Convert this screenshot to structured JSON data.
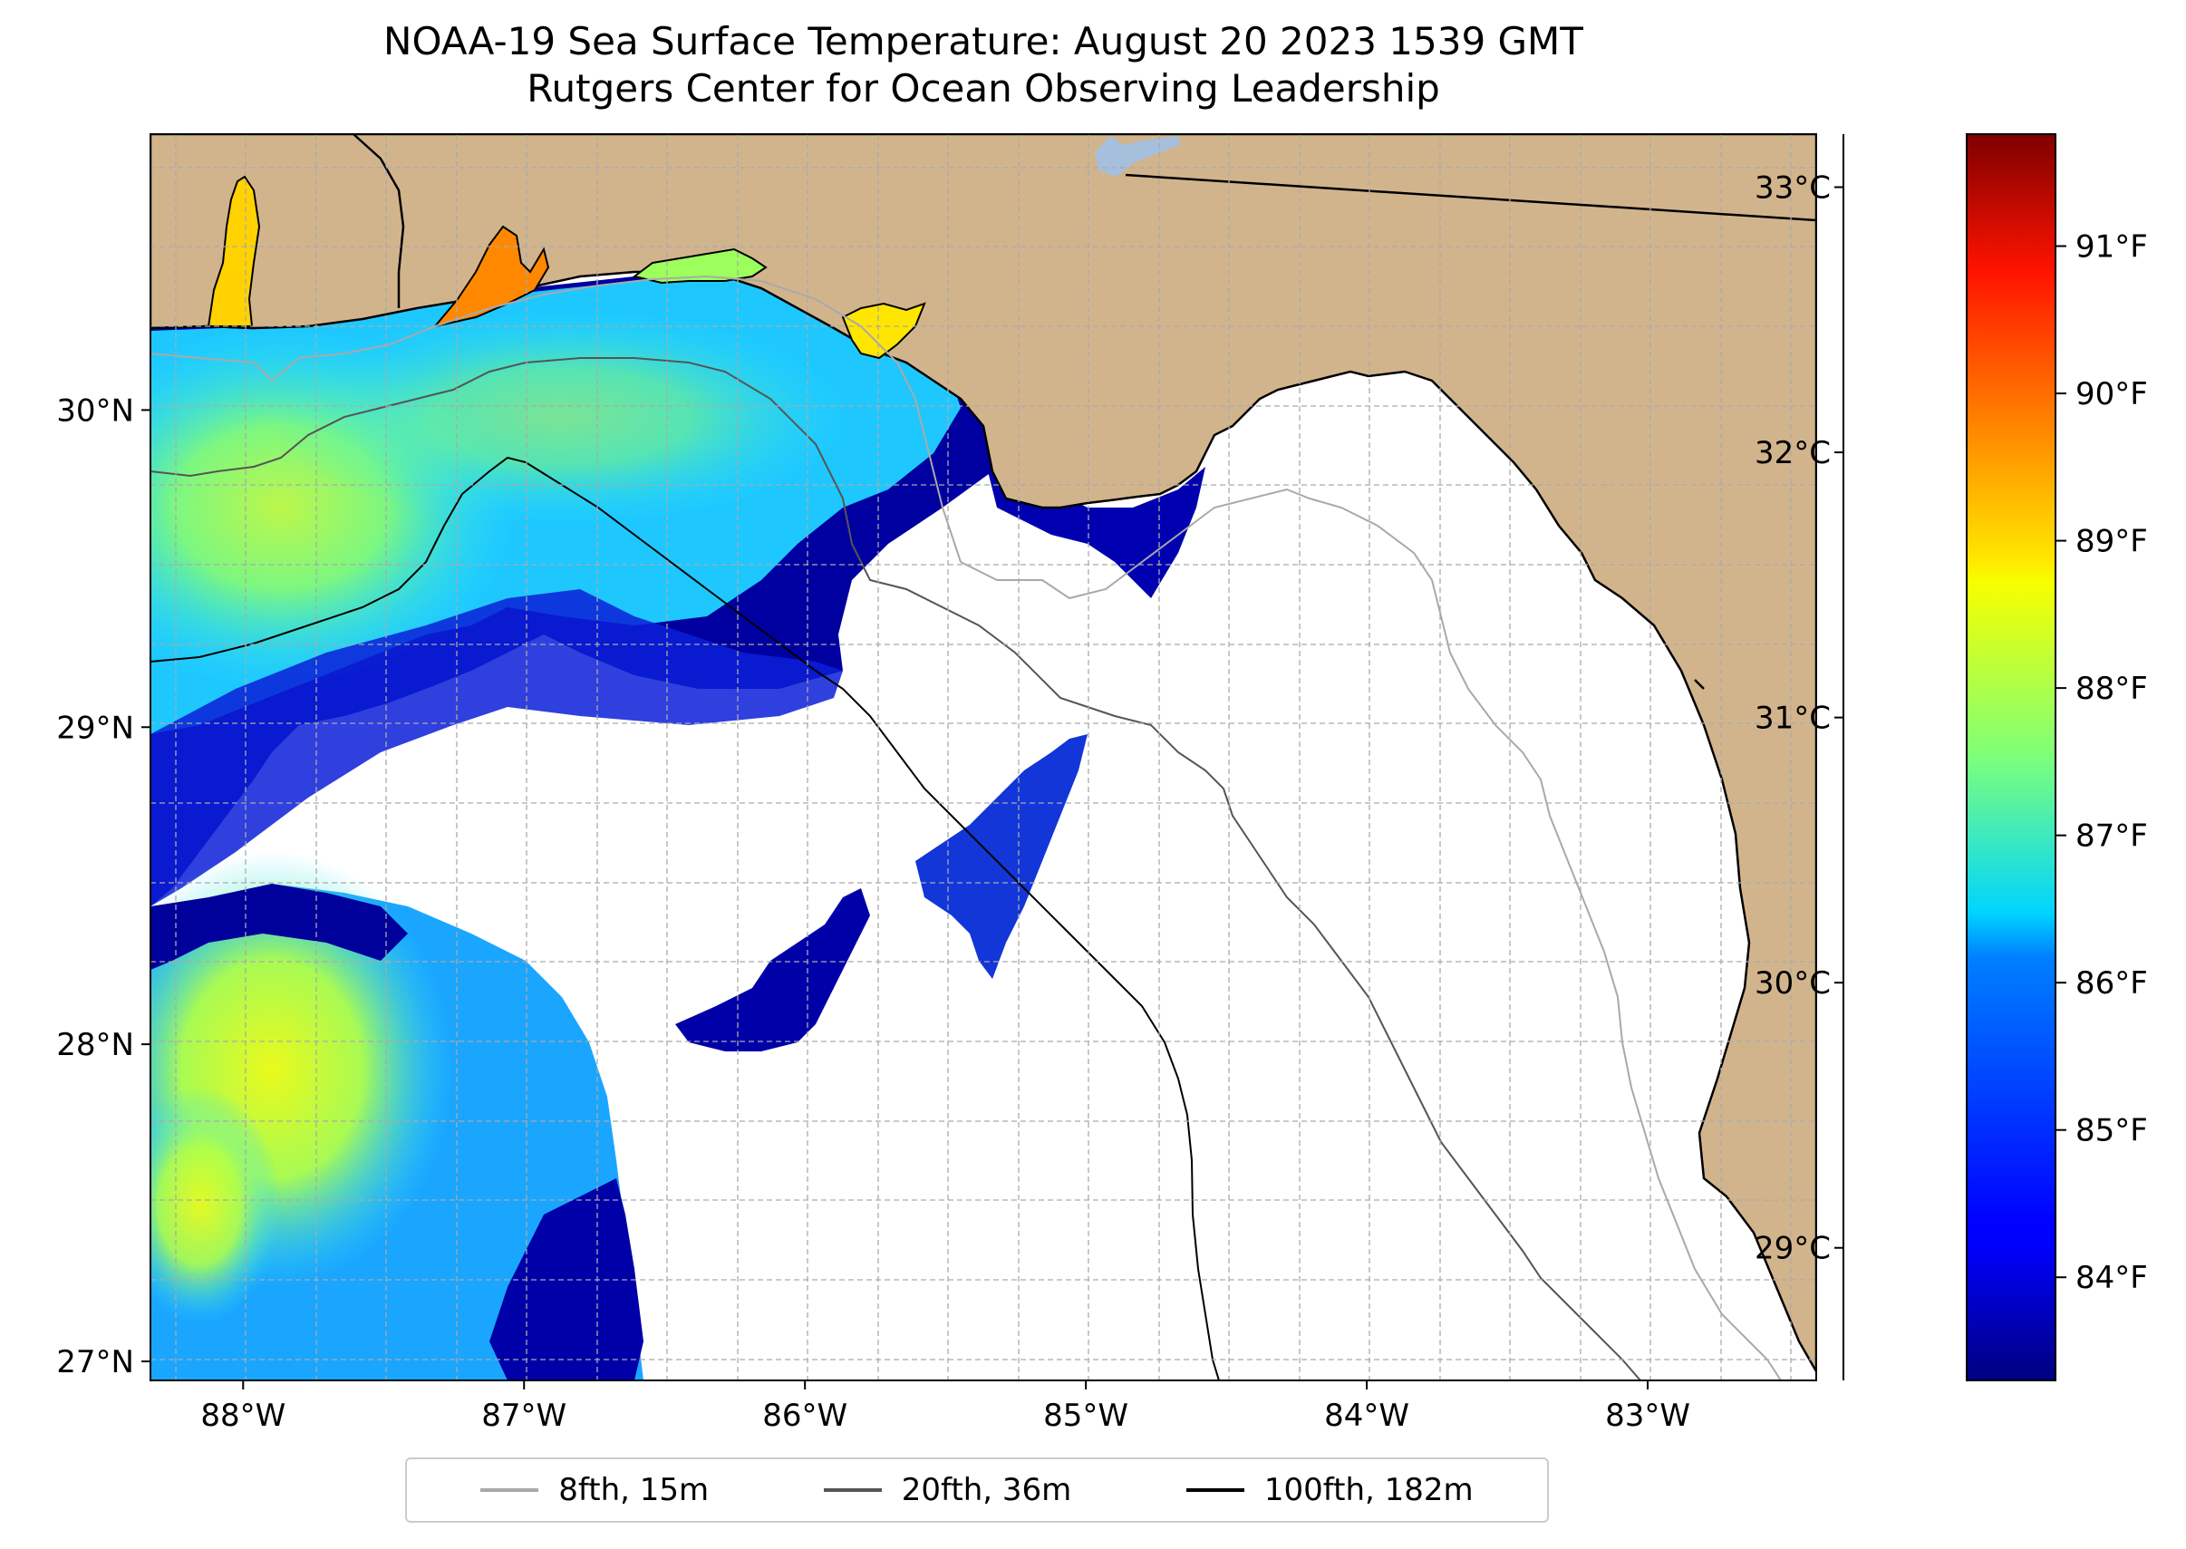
{
  "title": "NOAA-19 Sea Surface Temperature: August 20 2023 1539 GMT",
  "subtitle": "Rutgers Center for Ocean Observing Leadership",
  "chart_data": {
    "type": "heatmap",
    "title": "NOAA-19 Sea Surface Temperature: August 20 2023 1539 GMT",
    "subtitle": "Rutgers Center for Ocean Observing Leadership",
    "projection": "map",
    "xlim": [
      -88.33,
      -82.4
    ],
    "ylim": [
      26.94,
      30.87
    ],
    "x_ticks": [
      {
        "value": -88,
        "label": "88°W"
      },
      {
        "value": -87,
        "label": "87°W"
      },
      {
        "value": -86,
        "label": "86°W"
      },
      {
        "value": -85,
        "label": "85°W"
      },
      {
        "value": -84,
        "label": "84°W"
      },
      {
        "value": -83,
        "label": "83°W"
      }
    ],
    "y_ticks": [
      {
        "value": 27,
        "label": "27°N"
      },
      {
        "value": 28,
        "label": "28°N"
      },
      {
        "value": 29,
        "label": "29°N"
      },
      {
        "value": 30,
        "label": "30°N"
      }
    ],
    "grid": true,
    "colorbar": {
      "colormap": "jet",
      "celsius_range": [
        28.5,
        33.2
      ],
      "celsius_ticks": [
        {
          "value": 29,
          "label": "29°C"
        },
        {
          "value": 30,
          "label": "30°C"
        },
        {
          "value": 31,
          "label": "31°C"
        },
        {
          "value": 32,
          "label": "32°C"
        },
        {
          "value": 33,
          "label": "33°C"
        }
      ],
      "fahrenheit_ticks": [
        {
          "value": 84,
          "label": "84°F"
        },
        {
          "value": 85,
          "label": "85°F"
        },
        {
          "value": 86,
          "label": "86°F"
        },
        {
          "value": 87,
          "label": "87°F"
        },
        {
          "value": 88,
          "label": "88°F"
        },
        {
          "value": 89,
          "label": "89°F"
        },
        {
          "value": 90,
          "label": "90°F"
        },
        {
          "value": 91,
          "label": "91°F"
        }
      ]
    },
    "land_color": "#d2b48c",
    "lake_color": "#a5bfdd",
    "no_data_color": "#ffffff",
    "legend": {
      "placement": "bottom-center",
      "entries": [
        {
          "label": "8fth, 15m",
          "color": "#a9a9a9"
        },
        {
          "label": "20fth, 36m",
          "color": "#555555"
        },
        {
          "label": "100fth, 182m",
          "color": "#000000"
        }
      ]
    }
  }
}
